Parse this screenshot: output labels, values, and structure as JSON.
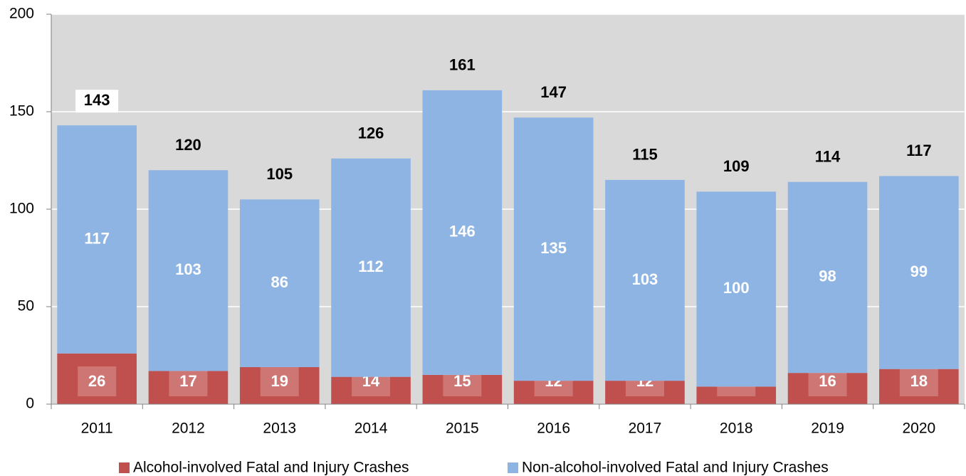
{
  "chart_data": {
    "type": "stacked_bar",
    "categories": [
      "2011",
      "2012",
      "2013",
      "2014",
      "2015",
      "2016",
      "2017",
      "2018",
      "2019",
      "2020"
    ],
    "series": [
      {
        "name": "Alcohol-involved Fatal and Injury Crashes",
        "color": "#c0504d",
        "values": [
          26,
          17,
          19,
          14,
          15,
          12,
          12,
          9,
          16,
          18
        ]
      },
      {
        "name": "Non-alcohol-involved Fatal and Injury Crashes",
        "color": "#8eb4e3",
        "values": [
          117,
          103,
          86,
          112,
          146,
          135,
          103,
          100,
          98,
          99
        ]
      }
    ],
    "totals": [
      143,
      120,
      105,
      126,
      161,
      147,
      115,
      109,
      114,
      117
    ],
    "ylim": [
      0,
      200
    ],
    "yticks": [
      0,
      50,
      100,
      150,
      200
    ],
    "grid": true,
    "legend": "bottom"
  }
}
